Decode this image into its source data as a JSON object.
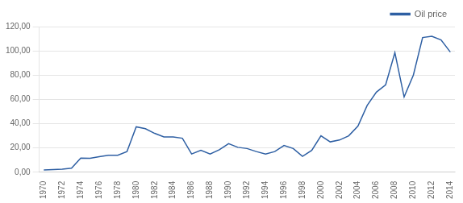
{
  "chart_data": {
    "type": "line",
    "x": [
      1970,
      1971,
      1972,
      1973,
      1974,
      1975,
      1976,
      1977,
      1978,
      1979,
      1980,
      1981,
      1982,
      1983,
      1984,
      1985,
      1986,
      1987,
      1988,
      1989,
      1990,
      1991,
      1992,
      1993,
      1994,
      1995,
      1996,
      1997,
      1998,
      1999,
      2000,
      2001,
      2002,
      2003,
      2004,
      2005,
      2006,
      2007,
      2008,
      2009,
      2010,
      2011,
      2012,
      2013,
      2014
    ],
    "series": [
      {
        "name": "Oil price",
        "color": "#2e5fa3",
        "values": [
          1.8,
          2.2,
          2.5,
          3.3,
          11.6,
          11.5,
          12.8,
          13.9,
          14.0,
          17.0,
          37.4,
          35.8,
          32.0,
          29.0,
          29.0,
          28.0,
          15.0,
          18.0,
          15.0,
          18.5,
          23.5,
          20.5,
          19.5,
          17.0,
          15.0,
          17.0,
          22.0,
          19.5,
          13.0,
          18.0,
          30.0,
          25.0,
          26.5,
          30.0,
          38.0,
          55.0,
          66.0,
          72.0,
          98.5,
          62.0,
          80.0,
          111.0,
          112.0,
          109.0,
          99.0
        ]
      }
    ],
    "xlim": [
      1969.5,
      2014.5
    ],
    "xticks": [
      1970,
      1972,
      1974,
      1976,
      1978,
      1980,
      1982,
      1984,
      1986,
      1988,
      1990,
      1992,
      1994,
      1996,
      1998,
      2000,
      2002,
      2004,
      2006,
      2008,
      2010,
      2012,
      2014
    ],
    "ylim": [
      0,
      120
    ],
    "yticks": [
      {
        "value": 0,
        "label": "0,00"
      },
      {
        "value": 20,
        "label": "20,00"
      },
      {
        "value": 40,
        "label": "40,00"
      },
      {
        "value": 60,
        "label": "60,00"
      },
      {
        "value": 80,
        "label": "80,00"
      },
      {
        "value": 100,
        "label": "100,00"
      },
      {
        "value": 120,
        "label": "120,00"
      }
    ],
    "grid": "y",
    "legend": "upper right"
  }
}
